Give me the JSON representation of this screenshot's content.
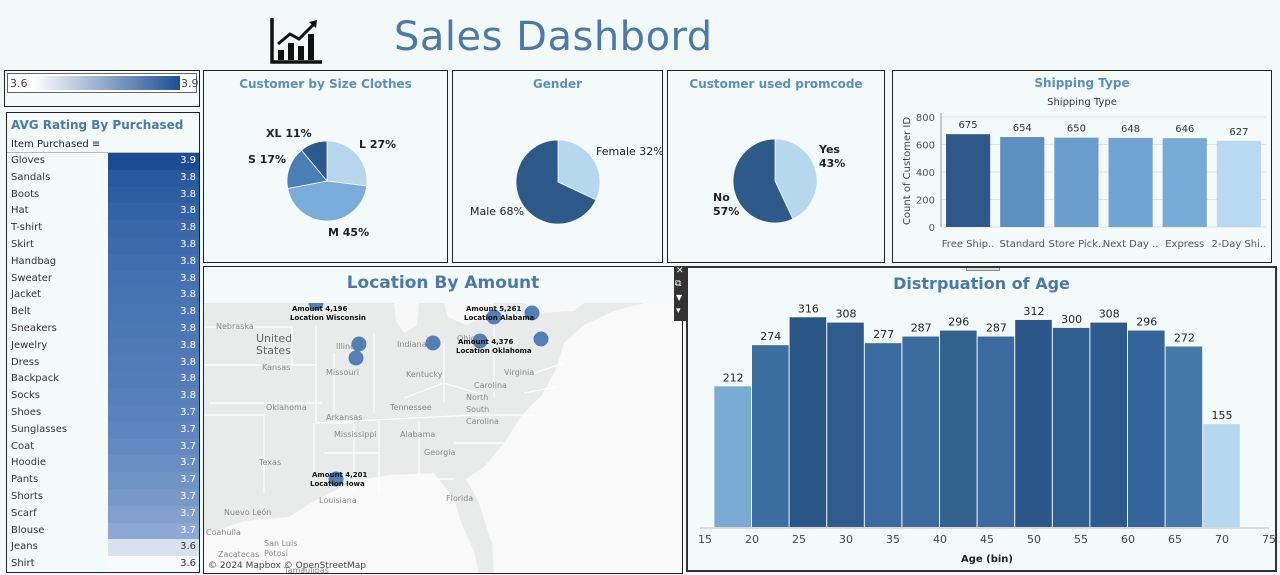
{
  "header": {
    "title": "Sales Dashbord",
    "logo_icon": "chart-trend-up-icon"
  },
  "legend": {
    "min_label": "3.6",
    "max_label": "3.9",
    "color_low": "#ffffff",
    "color_high": "#1e4f96"
  },
  "rating_table": {
    "title": "AVG Rating By Purchased",
    "column_header": "Item Purchased",
    "sort_icon": "sort-descending-icon",
    "rows": [
      {
        "item": "Gloves",
        "value": "3.9",
        "color": "#1d4c93"
      },
      {
        "item": "Sandals",
        "value": "3.8",
        "color": "#2a58a0"
      },
      {
        "item": "Boots",
        "value": "3.8",
        "color": "#2f5da3"
      },
      {
        "item": "Hat",
        "value": "3.8",
        "color": "#3462a7"
      },
      {
        "item": "T-shirt",
        "value": "3.8",
        "color": "#3a67aa"
      },
      {
        "item": "Skirt",
        "value": "3.8",
        "color": "#3e6aad"
      },
      {
        "item": "Handbag",
        "value": "3.8",
        "color": "#426eb0"
      },
      {
        "item": "Sweater",
        "value": "3.8",
        "color": "#4570b1"
      },
      {
        "item": "Jacket",
        "value": "3.8",
        "color": "#4873b3"
      },
      {
        "item": "Belt",
        "value": "3.8",
        "color": "#4a75b4"
      },
      {
        "item": "Sneakers",
        "value": "3.8",
        "color": "#4c77b5"
      },
      {
        "item": "Jewelry",
        "value": "3.8",
        "color": "#4e79b6"
      },
      {
        "item": "Dress",
        "value": "3.8",
        "color": "#517bb8"
      },
      {
        "item": "Backpack",
        "value": "3.8",
        "color": "#537db9"
      },
      {
        "item": "Socks",
        "value": "3.8",
        "color": "#5680ba"
      },
      {
        "item": "Shoes",
        "value": "3.7",
        "color": "#5a83bc"
      },
      {
        "item": "Sunglasses",
        "value": "3.7",
        "color": "#5e86be"
      },
      {
        "item": "Coat",
        "value": "3.7",
        "color": "#6489c0"
      },
      {
        "item": "Hoodie",
        "value": "3.7",
        "color": "#6a8ec3"
      },
      {
        "item": "Pants",
        "value": "3.7",
        "color": "#7093c6"
      },
      {
        "item": "Shorts",
        "value": "3.7",
        "color": "#7898ca"
      },
      {
        "item": "Scarf",
        "value": "3.7",
        "color": "#829fcd"
      },
      {
        "item": "Blouse",
        "value": "3.7",
        "color": "#8da8d2"
      },
      {
        "item": "Jeans",
        "value": "3.6",
        "color": "#d9e1ef"
      },
      {
        "item": "Shirt",
        "value": "3.6",
        "color": "#f7f9fc"
      }
    ]
  },
  "chart_data": [
    {
      "type": "pie",
      "title": "Customer by Size  Clothes",
      "slices": [
        {
          "label": "L",
          "pct": "27%",
          "value": 27,
          "color": "#b7d6ee"
        },
        {
          "label": "M",
          "pct": "45%",
          "value": 45,
          "color": "#79acd8"
        },
        {
          "label": "S",
          "pct": "17%",
          "value": 17,
          "color": "#4a7fb5"
        },
        {
          "label": "XL",
          "pct": "11%",
          "value": 11,
          "color": "#2d5a8c"
        }
      ]
    },
    {
      "type": "pie",
      "title": "Gender",
      "slices": [
        {
          "label": "Female",
          "pct": "32%",
          "value": 32,
          "color": "#b6d8ee"
        },
        {
          "label": "Male",
          "pct": "68%",
          "value": 68,
          "color": "#2d5a88"
        }
      ]
    },
    {
      "type": "pie",
      "title": "Customer used promcode",
      "slices": [
        {
          "label": "Yes",
          "pct": "43%",
          "value": 43,
          "color": "#b6d8ee"
        },
        {
          "label": "No",
          "pct": "57%",
          "value": 57,
          "color": "#2d5a88"
        }
      ]
    },
    {
      "type": "bar",
      "title": "Shipping Type",
      "subtitle": "Shipping Type",
      "ylabel": "Count of Customer ID",
      "ylim": [
        0,
        800
      ],
      "yticks": [
        "0",
        "200",
        "400",
        "600",
        "800"
      ],
      "categories": [
        "Free Ship..",
        "Standard",
        "Store Pick..",
        "Next Day ..",
        "Express",
        "2-Day Shi.."
      ],
      "values": [
        675,
        654,
        650,
        648,
        646,
        627
      ],
      "value_labels": [
        "675",
        "654",
        "650",
        "648",
        "646",
        "627"
      ],
      "colors": [
        "#2d5887",
        "#5d8fc3",
        "#6a9ccc",
        "#70a3d2",
        "#78aad6",
        "#b7daf0"
      ]
    },
    {
      "type": "map",
      "title": "Location By Amount",
      "attribution": "© 2024 Mapbox © OpenStreetMap",
      "annotations": [
        {
          "amount_label": "Amount 4,196",
          "location_label": "Location Wisconsin"
        },
        {
          "amount_label": "Amount 5,261",
          "location_label": "Location Alabama"
        },
        {
          "amount_label": "Amount 4,376",
          "location_label": "Location Oklahoma"
        },
        {
          "amount_label": "Amount 4,201",
          "location_label": "Location Iowa"
        }
      ],
      "place_labels": [
        "Nebraska",
        "United",
        "States",
        "Kansas",
        "Missouri",
        "Illinois",
        "Indiana",
        "Ohio",
        "Kentucky",
        "Tennessee",
        "Arkansas",
        "Oklahoma",
        "Mississippi",
        "Alabama",
        "Georgia",
        "Texas",
        "Florida",
        "Louisiana",
        "South",
        "Carolina",
        "North",
        "Carolina",
        "Virginia",
        "Coahuila",
        "Nuevo León",
        "Zacatecas",
        "San Luis",
        "Potosí",
        "Tamaulipas"
      ]
    },
    {
      "type": "bar",
      "title": "Distrpuation of Age",
      "xlabel": "Age (bin)",
      "xlim": [
        15,
        75
      ],
      "xticks": [
        "15",
        "20",
        "25",
        "30",
        "35",
        "40",
        "45",
        "50",
        "55",
        "60",
        "65",
        "70",
        "75"
      ],
      "bins": [
        18,
        22,
        26,
        30,
        34,
        38,
        42,
        46,
        50,
        54,
        58,
        62,
        66,
        70
      ],
      "values": [
        212,
        274,
        316,
        308,
        277,
        287,
        296,
        287,
        312,
        300,
        308,
        296,
        272,
        155
      ],
      "value_labels": [
        "212",
        "274",
        "316",
        "308",
        "277",
        "287",
        "296",
        "287",
        "312",
        "300",
        "308",
        "296",
        "272",
        "155"
      ],
      "colors": [
        "#7aaad4",
        "#3d6ea2",
        "#2a5686",
        "#2f5c8c",
        "#3a6a9e",
        "#3a6a9e",
        "#33628f",
        "#3a6a9e",
        "#2b5888",
        "#30608f",
        "#2d5a8b",
        "#34649a",
        "#4677ab",
        "#b6d8ee"
      ]
    }
  ],
  "toolbar": {
    "icons": [
      "close-icon",
      "popout-icon",
      "filter-icon",
      "more-icon"
    ],
    "close_glyph": "✕",
    "popout_glyph": "⧉",
    "filter_glyph": "▼",
    "more_glyph": "▾"
  }
}
